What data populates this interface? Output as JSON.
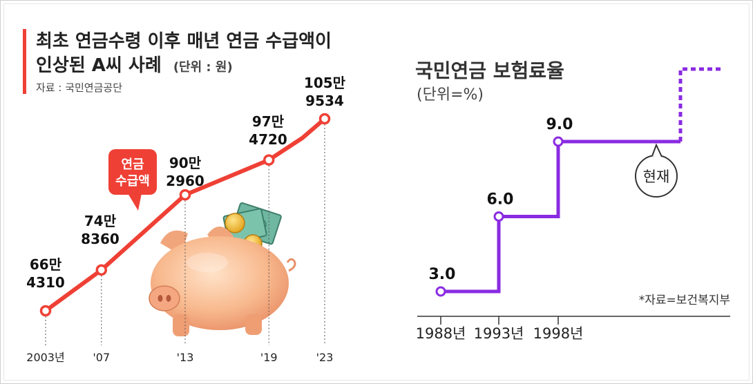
{
  "left_chart": {
    "title_line1": "최초 연금수령 이후 매년 연금 수급액이",
    "title_line2": "인상된 A씨 사례",
    "unit": "(단위 : 원)",
    "source": "자료 : 국민연금공단",
    "callout": [
      "연금",
      "수급액"
    ],
    "colors": {
      "line": "#ef4035",
      "accent": "#ef4035"
    }
  },
  "right_chart": {
    "title": "국민연금 보험료율",
    "unit": "(단위=%)",
    "source": "*자료=보건복지부",
    "bubble": "현재",
    "colors": {
      "line": "#8a2be2"
    }
  },
  "chart_data": [
    {
      "type": "line",
      "title": "최초 연금수령 이후 매년 연금 수급액이 인상된 A씨 사례",
      "x": [
        2003,
        2007,
        2013,
        2019,
        2023
      ],
      "x_tick_labels": [
        "2003년",
        "'07",
        "'13",
        "'19",
        "'23"
      ],
      "series": [
        {
          "name": "연금 수급액",
          "values": [
            664310,
            748360,
            902960,
            974720,
            1059534
          ]
        }
      ],
      "data_labels": [
        [
          "66만",
          "4310"
        ],
        [
          "74만",
          "8360"
        ],
        [
          "90만",
          "2960"
        ],
        [
          "97만",
          "4720"
        ],
        [
          "105만",
          "9534"
        ]
      ],
      "ylabel": "",
      "xlabel": ""
    },
    {
      "type": "line",
      "title": "국민연금 보험료율",
      "x": [
        1988,
        1993,
        1998
      ],
      "x_tick_labels": [
        "1988년",
        "1993년",
        "1998년"
      ],
      "series": [
        {
          "name": "보험료율",
          "values": [
            3.0,
            6.0,
            9.0
          ]
        }
      ],
      "data_labels": [
        "3.0",
        "6.0",
        "9.0"
      ],
      "step": true,
      "ylabel": "",
      "xlabel": ""
    }
  ]
}
